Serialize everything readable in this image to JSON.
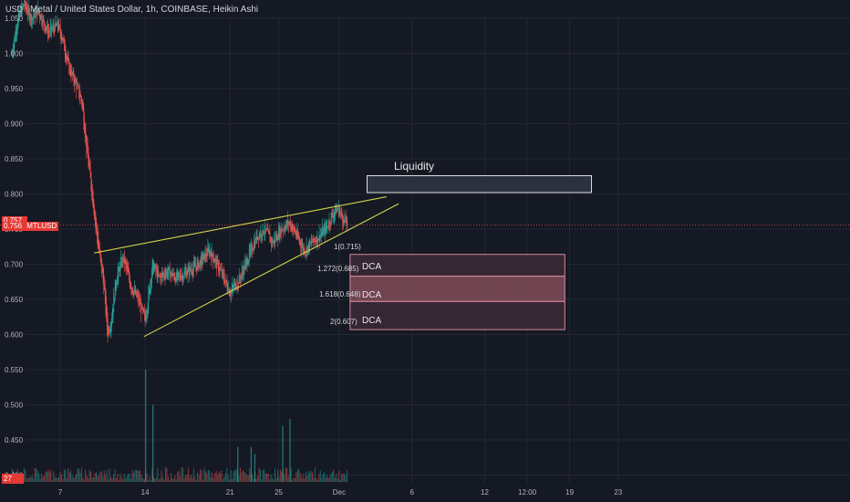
{
  "header": {
    "currency": "USD",
    "title": "Metal / United States Dollar, 1h, COINBASE, Heikin Ashi"
  },
  "badges": {
    "last_price": "0.757",
    "symbol_price": "0.756",
    "symbol": "MTLUSD",
    "volume": "27"
  },
  "colors": {
    "background": "#151924",
    "up": "#26a69a",
    "down": "#ef5350",
    "trendline": "#d4d44a",
    "grid": "#232733"
  },
  "chart_data": {
    "type": "candlestick",
    "style": "Heikin Ashi",
    "y_ticks": [
      1.05,
      1.0,
      0.95,
      0.9,
      0.85,
      0.8,
      0.75,
      0.7,
      0.65,
      0.6,
      0.55,
      0.5,
      0.45,
      0.4
    ],
    "y_tick_labels": [
      "1.050",
      "1.000",
      "0.950",
      "0.900",
      "0.850",
      "0.800",
      "0.750",
      "0.700",
      "0.650",
      "0.600",
      "0.550",
      "0.500",
      "0.450",
      "0.400"
    ],
    "ylim": [
      0.396,
      1.063
    ],
    "x_ticks": [
      {
        "label": "7",
        "day": 7
      },
      {
        "label": "14",
        "day": 14
      },
      {
        "label": "21",
        "day": 21
      },
      {
        "label": "25",
        "day": 25
      },
      {
        "label": "Dec",
        "day": 30
      },
      {
        "label": "6",
        "day": 36
      },
      {
        "label": "12",
        "day": 42
      },
      {
        "label": "12:00",
        "day": 45.5
      },
      {
        "label": "19",
        "day": 49
      },
      {
        "label": "23",
        "day": 53
      }
    ],
    "price_path": [
      [
        3.0,
        1.0
      ],
      [
        3.5,
        1.05
      ],
      [
        4.0,
        1.07
      ],
      [
        4.6,
        1.05
      ],
      [
        5.2,
        1.06
      ],
      [
        6.0,
        1.03
      ],
      [
        6.8,
        1.04
      ],
      [
        7.2,
        1.02
      ],
      [
        7.7,
        0.98
      ],
      [
        8.2,
        0.96
      ],
      [
        8.8,
        0.93
      ],
      [
        9.2,
        0.86
      ],
      [
        9.7,
        0.79
      ],
      [
        10.1,
        0.73
      ],
      [
        10.6,
        0.67
      ],
      [
        10.9,
        0.6
      ],
      [
        11.2,
        0.62
      ],
      [
        11.6,
        0.68
      ],
      [
        12.2,
        0.71
      ],
      [
        12.8,
        0.67
      ],
      [
        13.4,
        0.65
      ],
      [
        14.0,
        0.62
      ],
      [
        14.3,
        0.66
      ],
      [
        14.6,
        0.7
      ],
      [
        15.1,
        0.68
      ],
      [
        15.8,
        0.69
      ],
      [
        16.6,
        0.68
      ],
      [
        17.5,
        0.69
      ],
      [
        18.4,
        0.7
      ],
      [
        19.3,
        0.72
      ],
      [
        20.2,
        0.69
      ],
      [
        21.0,
        0.66
      ],
      [
        21.8,
        0.68
      ],
      [
        22.5,
        0.71
      ],
      [
        23.2,
        0.74
      ],
      [
        23.8,
        0.75
      ],
      [
        24.5,
        0.73
      ],
      [
        25.2,
        0.75
      ],
      [
        25.9,
        0.76
      ],
      [
        26.5,
        0.74
      ],
      [
        27.1,
        0.72
      ],
      [
        27.7,
        0.73
      ],
      [
        28.3,
        0.74
      ],
      [
        28.9,
        0.75
      ],
      [
        29.4,
        0.77
      ],
      [
        29.9,
        0.78
      ],
      [
        30.3,
        0.765
      ],
      [
        30.7,
        0.756
      ]
    ],
    "volume_spikes": [
      [
        14.0,
        0.55
      ],
      [
        14.6,
        0.5
      ],
      [
        25.9,
        0.48
      ],
      [
        25.3,
        0.47
      ],
      [
        22.7,
        0.44
      ],
      [
        21.6,
        0.44
      ],
      [
        23.0,
        0.43
      ]
    ],
    "wedge": {
      "upper": [
        [
          9.8,
          0.716
        ],
        [
          33.9,
          0.796
        ]
      ],
      "lower": [
        [
          13.9,
          0.597
        ],
        [
          34.9,
          0.786
        ]
      ]
    },
    "zones": [
      {
        "name": "Liquidity",
        "label": "Liquidity",
        "day_start": 32.3,
        "day_end": 50.8,
        "price_top": 0.826,
        "price_bottom": 0.802,
        "kind": "liquidity"
      },
      {
        "name": "dca-1",
        "label": "DCA",
        "day_start": 30.9,
        "day_end": 48.6,
        "price_top": 0.714,
        "price_bottom": 0.683,
        "kind": "dca"
      },
      {
        "name": "dca-2",
        "label": "DCA",
        "day_start": 30.9,
        "day_end": 48.6,
        "price_top": 0.683,
        "price_bottom": 0.647,
        "kind": "dca-strong"
      },
      {
        "name": "dca-3",
        "label": "DCA",
        "day_start": 30.9,
        "day_end": 48.6,
        "price_top": 0.647,
        "price_bottom": 0.607,
        "kind": "dca"
      }
    ],
    "fib_levels": [
      {
        "label": "1(0.715)",
        "price": 0.715
      },
      {
        "label": "1.272(0.685)",
        "price": 0.685
      },
      {
        "label": "1.618(0.648)",
        "price": 0.648
      },
      {
        "label": "2(0.607)",
        "price": 0.607
      }
    ]
  }
}
